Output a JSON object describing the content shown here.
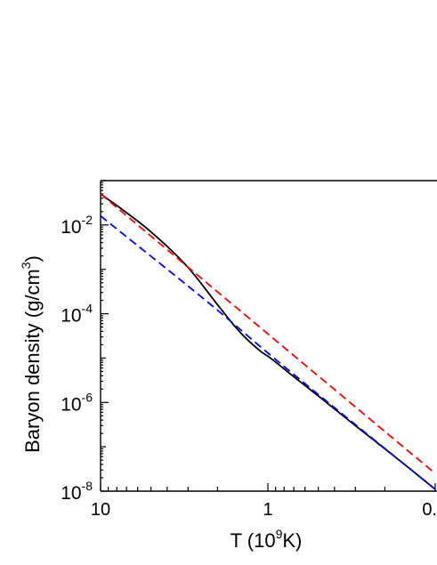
{
  "chart_data": {
    "type": "line",
    "title": "",
    "xlabel": {
      "prefix": "T  (10",
      "sup": "9",
      "suffix": "K)"
    },
    "ylabel": {
      "prefix": "Baryon density  (g/cm",
      "sup": "3",
      "suffix": ")"
    },
    "x_scale": "log",
    "x_direction": "reversed",
    "xlim": [
      10,
      0.1
    ],
    "y_scale": "log",
    "ylim": [
      1e-08,
      0.1
    ],
    "x_tick_labels": [
      "10",
      "1",
      "0."
    ],
    "y_tick_labels": [
      {
        "base": "10",
        "exp": "-2"
      },
      {
        "base": "10",
        "exp": "-4"
      },
      {
        "base": "10",
        "exp": "-6"
      },
      {
        "base": "10",
        "exp": "-8"
      }
    ],
    "grid": false,
    "series": [
      {
        "color": "#000000",
        "dash": "solid",
        "x": [
          10,
          7,
          5,
          3,
          2,
          1.5,
          1.1,
          1,
          0.7,
          0.5,
          0.3,
          0.2,
          0.15,
          0.1
        ],
        "y": [
          0.05,
          0.019,
          0.007,
          0.0011,
          0.00016,
          4.2e-05,
          1.4e-05,
          1.1e-05,
          3.8e-06,
          1.4e-06,
          3e-07,
          9e-08,
          3.8e-08,
          1.1e-08
        ]
      },
      {
        "color": "#ff0000",
        "dash": "dashed",
        "x": [
          10,
          1,
          0.1
        ],
        "y": [
          0.05,
          3.5e-05,
          2.5e-08
        ]
      },
      {
        "color": "#0000ff",
        "dash": "dashed",
        "x": [
          10,
          2,
          1,
          0.1
        ],
        "y": [
          0.016,
          0.00012,
          1.3e-05,
          1.1e-08
        ]
      }
    ]
  }
}
